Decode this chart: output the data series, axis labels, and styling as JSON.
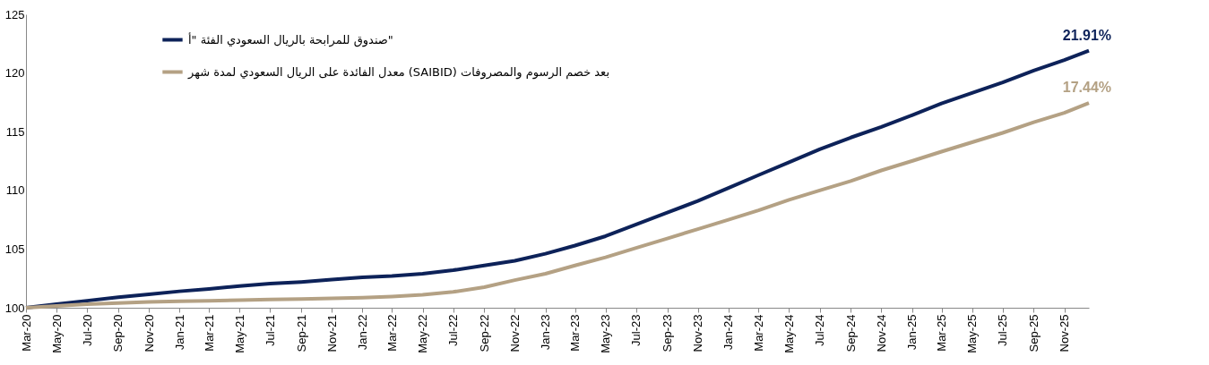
{
  "chart_data": {
    "type": "line",
    "xlim": [
      "2020-03",
      "2025-12-20"
    ],
    "xticks": [
      {
        "value": "2020-03",
        "label": "Mar-20"
      },
      {
        "value": "2020-05",
        "label": "May-20"
      },
      {
        "value": "2020-07",
        "label": "Jul-20"
      },
      {
        "value": "2020-09",
        "label": "Sep-20"
      },
      {
        "value": "2020-11",
        "label": "Nov-20"
      },
      {
        "value": "2021-01",
        "label": "Jan-21"
      },
      {
        "value": "2021-03",
        "label": "Mar-21"
      },
      {
        "value": "2021-05",
        "label": "May-21"
      },
      {
        "value": "2021-07",
        "label": "Jul-21"
      },
      {
        "value": "2021-09",
        "label": "Sep-21"
      },
      {
        "value": "2021-11",
        "label": "Nov-21"
      },
      {
        "value": "2022-01",
        "label": "Jan-22"
      },
      {
        "value": "2022-03",
        "label": "Mar-22"
      },
      {
        "value": "2022-05",
        "label": "May-22"
      },
      {
        "value": "2022-07",
        "label": "Jul-22"
      },
      {
        "value": "2022-09",
        "label": "Sep-22"
      },
      {
        "value": "2022-11",
        "label": "Nov-22"
      },
      {
        "value": "2023-01",
        "label": "Jan-23"
      },
      {
        "value": "2023-03",
        "label": "Mar-23"
      },
      {
        "value": "2023-05",
        "label": "May-23"
      },
      {
        "value": "2023-07",
        "label": "Jul-23"
      },
      {
        "value": "2023-09",
        "label": "Sep-23"
      },
      {
        "value": "2023-11",
        "label": "Nov-23"
      },
      {
        "value": "2024-01",
        "label": "Jan-24"
      },
      {
        "value": "2024-03",
        "label": "Mar-24"
      },
      {
        "value": "2024-05",
        "label": "May-24"
      },
      {
        "value": "2024-07",
        "label": "Jul-24"
      },
      {
        "value": "2024-09",
        "label": "Sep-24"
      },
      {
        "value": "2024-11",
        "label": "Nov-24"
      },
      {
        "value": "2025-01",
        "label": "Jan-25"
      },
      {
        "value": "2025-03",
        "label": "Mar-25"
      },
      {
        "value": "2025-05",
        "label": "May-25"
      },
      {
        "value": "2025-07",
        "label": "Jul-25"
      },
      {
        "value": "2025-09",
        "label": "Sep-25"
      },
      {
        "value": "2025-11",
        "label": "Nov-25"
      }
    ],
    "ylim": [
      100,
      125
    ],
    "yticks": [
      100,
      105,
      110,
      115,
      120,
      125
    ],
    "x": [
      "2020-03",
      "2020-05",
      "2020-07",
      "2020-09",
      "2020-11",
      "2021-01",
      "2021-03",
      "2021-05",
      "2021-07",
      "2021-09",
      "2021-11",
      "2022-01",
      "2022-03",
      "2022-05",
      "2022-07",
      "2022-09",
      "2022-11",
      "2023-01",
      "2023-03",
      "2023-05",
      "2023-07",
      "2023-09",
      "2023-11",
      "2024-01",
      "2024-03",
      "2024-05",
      "2024-07",
      "2024-09",
      "2024-11",
      "2025-01",
      "2025-03",
      "2025-05",
      "2025-07",
      "2025-09",
      "2025-11",
      "2025-12-20"
    ],
    "series": [
      {
        "name": "صندوق للمرابحة بالريال السعودي الفئة \"أ\"",
        "color": "#0d2259",
        "values": [
          100,
          100.3,
          100.6,
          100.9,
          101.15,
          101.4,
          101.6,
          101.85,
          102.05,
          102.2,
          102.4,
          102.6,
          102.7,
          102.9,
          103.2,
          103.6,
          104.0,
          104.6,
          105.3,
          106.1,
          107.1,
          108.1,
          109.1,
          110.2,
          111.3,
          112.4,
          113.5,
          114.5,
          115.4,
          116.4,
          117.4,
          118.3,
          119.2,
          120.2,
          121.1,
          121.91
        ]
      },
      {
        "name": "معدل الفائدة على الريال السعودي لمدة شهر (SAIBID) بعد خصم الرسوم والمصروفات",
        "color": "#b4a184",
        "values": [
          100,
          100.15,
          100.3,
          100.4,
          100.5,
          100.55,
          100.6,
          100.65,
          100.7,
          100.75,
          100.8,
          100.85,
          100.95,
          101.1,
          101.35,
          101.75,
          102.35,
          102.9,
          103.6,
          104.3,
          105.1,
          105.9,
          106.7,
          107.5,
          108.3,
          109.2,
          110.0,
          110.8,
          111.7,
          112.5,
          113.3,
          114.1,
          114.9,
          115.8,
          116.6,
          117.44
        ]
      }
    ],
    "annotations": [
      {
        "text": "21.91%",
        "x": "2025-12-20",
        "y": 121.91
      },
      {
        "text": "17.44%",
        "x": "2025-12-20",
        "y": 117.44
      }
    ],
    "legend": "top left",
    "grid": false,
    "marker": "none",
    "line_style": "solid"
  }
}
